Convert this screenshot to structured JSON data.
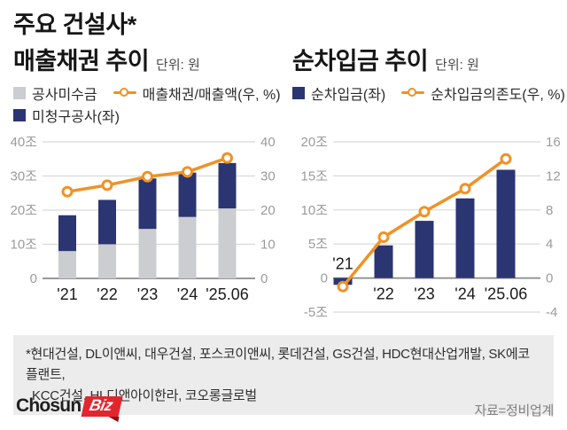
{
  "page": {
    "main_title": "주요 건설사*",
    "source": "자료=정비업계",
    "logo": {
      "text1": "Chosun",
      "text2": "Biz"
    },
    "footnote": {
      "line1": "*현대건설, DL이앤씨, 대우건설, 포스코이앤씨, 롯데건설, GS건설, HDC현대산업개발, SK에코플랜트,",
      "line2": "KCC건설, HL디앤아이한라, 코오롱글로벌"
    }
  },
  "colors": {
    "navy": "#2b3572",
    "orange": "#ef9226",
    "gray_bar": "#cbcdd1",
    "grid": "#d9d9d9",
    "axis": "#8a8a8a"
  },
  "chart_data": [
    {
      "type": "bar",
      "title": "매출채권 추이",
      "unit": "단위: 원",
      "categories": [
        "'21",
        "'22",
        "'23",
        "'24",
        "'25.06"
      ],
      "series": [
        {
          "name": "공사미수금",
          "kind": "bar",
          "stack": true,
          "axis": "left",
          "color_key": "gray_bar",
          "values": [
            8,
            10,
            14.5,
            18,
            20.5
          ]
        },
        {
          "name": "미청구공사(좌)",
          "kind": "bar",
          "stack": true,
          "axis": "left",
          "color_key": "navy",
          "values": [
            10.5,
            13,
            14.8,
            13,
            13.3
          ]
        },
        {
          "name": "매출채권/매출액(우, %)",
          "kind": "line",
          "axis": "right",
          "color_key": "orange",
          "values": [
            25.4,
            27.3,
            29.8,
            31.2,
            35.3
          ]
        }
      ],
      "left_axis": {
        "min": 0,
        "max": 40,
        "ticks": [
          {
            "v": 40,
            "label": "40조"
          },
          {
            "v": 30,
            "label": "30조"
          },
          {
            "v": 20,
            "label": "20조"
          },
          {
            "v": 10,
            "label": "10조"
          },
          {
            "v": 0,
            "label": "0"
          }
        ]
      },
      "right_axis": {
        "min": 0,
        "max": 40,
        "ticks": [
          {
            "v": 40,
            "label": "40"
          },
          {
            "v": 30,
            "label": "30"
          },
          {
            "v": 20,
            "label": "20"
          },
          {
            "v": 10,
            "label": "10"
          },
          {
            "v": 0,
            "label": "0"
          }
        ]
      },
      "legend": [
        {
          "marker": "square",
          "color_key": "gray_bar",
          "label": "공사미수금"
        },
        {
          "marker": "line",
          "color_key": "orange",
          "label": "매출채권/매출액(우, %)"
        },
        {
          "marker": "square",
          "color_key": "navy",
          "label": "미청구공사(좌)"
        }
      ],
      "grid": true,
      "legend_position": "top"
    },
    {
      "type": "bar",
      "title": "순차입금 추이",
      "unit": "단위: 원",
      "categories": [
        "'21",
        "'22",
        "'23",
        "'24",
        "'25.06"
      ],
      "series": [
        {
          "name": "순차입금(좌)",
          "kind": "bar",
          "stack": false,
          "axis": "left",
          "color_key": "navy",
          "values": [
            -1,
            4.8,
            8.4,
            11.7,
            15.9
          ]
        },
        {
          "name": "순차입금의존도(우, %)",
          "kind": "line",
          "axis": "right",
          "color_key": "orange",
          "values": [
            -1,
            4.8,
            7.8,
            10.5,
            14
          ]
        }
      ],
      "left_axis": {
        "min": -5,
        "max": 20,
        "ticks": [
          {
            "v": 20,
            "label": "20조"
          },
          {
            "v": 15,
            "label": "15조"
          },
          {
            "v": 10,
            "label": "10조"
          },
          {
            "v": 5,
            "label": "5조"
          },
          {
            "v": 0,
            "label": "0"
          },
          {
            "v": -5,
            "label": "-5조"
          }
        ]
      },
      "right_axis": {
        "min": -4,
        "max": 16,
        "ticks": [
          {
            "v": 16,
            "label": "16"
          },
          {
            "v": 12,
            "label": "12"
          },
          {
            "v": 8,
            "label": "8"
          },
          {
            "v": 4,
            "label": "4"
          },
          {
            "v": 0,
            "label": "0"
          },
          {
            "v": -4,
            "label": "-4"
          }
        ]
      },
      "legend": [
        {
          "marker": "square",
          "color_key": "navy",
          "label": "순차입금(좌)"
        },
        {
          "marker": "line",
          "color_key": "orange",
          "label": "순차입금의존도(우, %)"
        }
      ],
      "grid": true,
      "legend_position": "top"
    }
  ]
}
